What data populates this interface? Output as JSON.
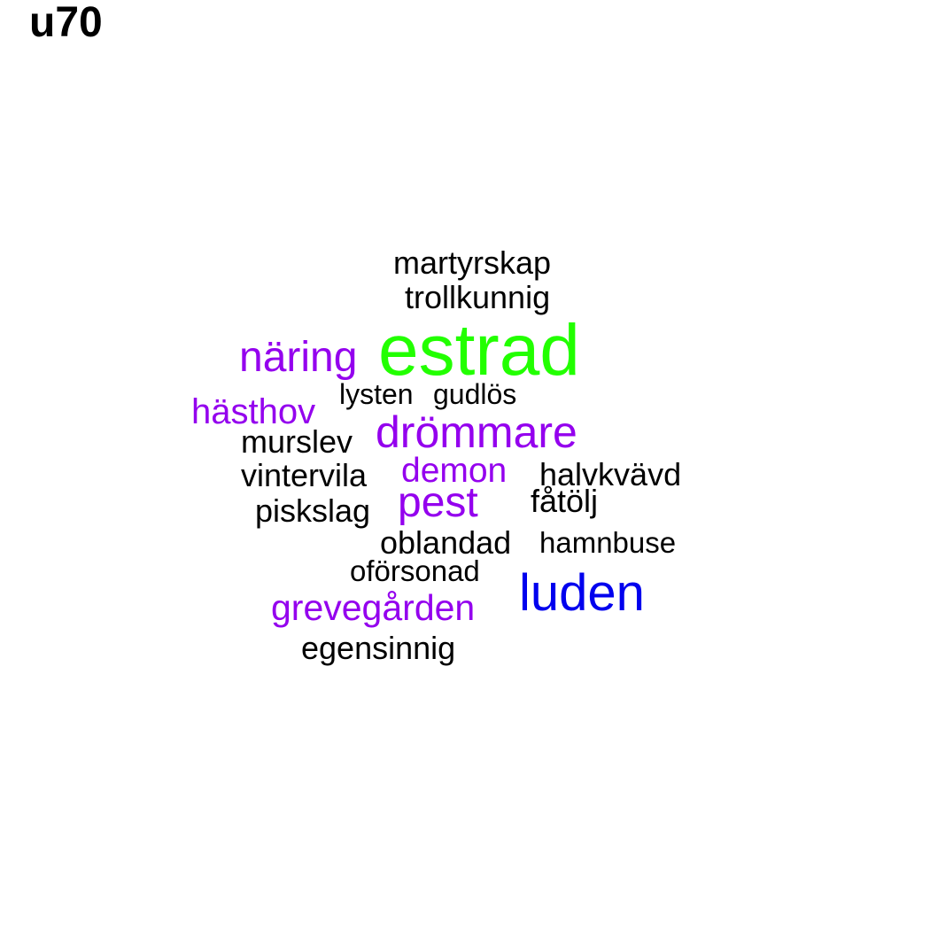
{
  "chart_data": {
    "type": "wordcloud",
    "title": "u70",
    "words": [
      {
        "text": "estrad",
        "color": "#22ff00"
      },
      {
        "text": "luden",
        "color": "#0000ee"
      },
      {
        "text": "drömmare",
        "color": "#9400ee"
      },
      {
        "text": "näring",
        "color": "#9400ee"
      },
      {
        "text": "pest",
        "color": "#9400ee"
      },
      {
        "text": "grevegården",
        "color": "#9400ee"
      },
      {
        "text": "hästhov",
        "color": "#9400ee"
      },
      {
        "text": "demon",
        "color": "#9400ee"
      },
      {
        "text": "martyrskap",
        "color": "#000000"
      },
      {
        "text": "trollkunnig",
        "color": "#000000"
      },
      {
        "text": "lysten",
        "color": "#000000"
      },
      {
        "text": "gudlös",
        "color": "#000000"
      },
      {
        "text": "murslev",
        "color": "#000000"
      },
      {
        "text": "vintervila",
        "color": "#000000"
      },
      {
        "text": "halvkvävd",
        "color": "#000000"
      },
      {
        "text": "piskslag",
        "color": "#000000"
      },
      {
        "text": "fåtölj",
        "color": "#000000"
      },
      {
        "text": "oblandad",
        "color": "#000000"
      },
      {
        "text": "hamnbuse",
        "color": "#000000"
      },
      {
        "text": "oförsonad",
        "color": "#000000"
      },
      {
        "text": "egensinnig",
        "color": "#000000"
      }
    ]
  }
}
